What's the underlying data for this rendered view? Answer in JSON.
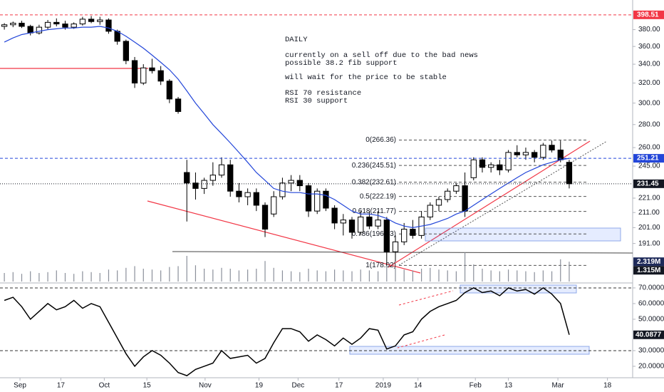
{
  "chart_data": [
    {
      "type": "candlestick",
      "note": [
        "DAILY",
        "currently on a sell off due to the bad news",
        "possible 38.2 fib support",
        "will wait for the price to be stable",
        "RSI 70 resistance",
        "RSI 30 support"
      ],
      "log_scale": true,
      "ylim": [
        169,
        418
      ],
      "xlim": [
        -0.5,
        72.3
      ],
      "yticks": [
        {
          "value": 380,
          "label": "380.00"
        },
        {
          "value": 360,
          "label": "360.00"
        },
        {
          "value": 340,
          "label": "340.00"
        },
        {
          "value": 320,
          "label": "320.00"
        },
        {
          "value": 300,
          "label": "300.00"
        },
        {
          "value": 280,
          "label": "280.00"
        },
        {
          "value": 260,
          "label": "260.00"
        },
        {
          "value": 245,
          "label": "245.00"
        },
        {
          "value": 221,
          "label": "221.00"
        },
        {
          "value": 211,
          "label": "211.00"
        },
        {
          "value": 201,
          "label": "201.00"
        },
        {
          "value": 191,
          "label": "191.00"
        }
      ],
      "xticks": [
        {
          "value": 1.8,
          "label": "Sep"
        },
        {
          "value": 6.5,
          "label": "17"
        },
        {
          "value": 11.5,
          "label": "Oct"
        },
        {
          "value": 16.4,
          "label": "15"
        },
        {
          "value": 23.1,
          "label": "Nov"
        },
        {
          "value": 29.3,
          "label": "19"
        },
        {
          "value": 33.8,
          "label": "Dec"
        },
        {
          "value": 38.5,
          "label": "17"
        },
        {
          "value": 43.6,
          "label": "2019"
        },
        {
          "value": 47.6,
          "label": "14"
        },
        {
          "value": 54.2,
          "label": "Feb"
        },
        {
          "value": 58.0,
          "label": "13"
        },
        {
          "value": 63.7,
          "label": "Mar"
        },
        {
          "value": 69.4,
          "label": "18"
        }
      ],
      "open": [
        384,
        386,
        388,
        384,
        376,
        383,
        389,
        387,
        383,
        387,
        393,
        390,
        392,
        378,
        366,
        344,
        320,
        336,
        333,
        322,
        304,
        240,
        232,
        228,
        234,
        238,
        246,
        226,
        222,
        225,
        216,
        210,
        222,
        232,
        234,
        230,
        212,
        226,
        214,
        204,
        206,
        198,
        208,
        202,
        206,
        186,
        192,
        200,
        196,
        208,
        216,
        220,
        226,
        230,
        236,
        250,
        244,
        246,
        242,
        256,
        254,
        256,
        252,
        262,
        258,
        248
      ],
      "high": [
        388,
        390,
        391,
        386,
        386,
        392,
        394,
        391,
        389,
        396,
        397,
        396,
        394,
        380,
        368,
        348,
        340,
        346,
        338,
        324,
        306,
        250,
        240,
        236,
        248,
        252,
        250,
        232,
        228,
        228,
        218,
        226,
        236,
        238,
        238,
        232,
        228,
        228,
        216,
        210,
        208,
        212,
        212,
        212,
        208,
        196,
        204,
        206,
        212,
        218,
        222,
        228,
        232,
        240,
        252,
        252,
        248,
        250,
        258,
        262,
        260,
        258,
        264,
        266,
        266,
        250
      ],
      "low": [
        380,
        383,
        382,
        373,
        374,
        380,
        384,
        380,
        381,
        385,
        388,
        386,
        375,
        362,
        340,
        315,
        318,
        330,
        318,
        300,
        290,
        205,
        220,
        224,
        230,
        236,
        222,
        218,
        216,
        212,
        195,
        208,
        220,
        226,
        226,
        208,
        210,
        212,
        200,
        196,
        194,
        196,
        200,
        200,
        178,
        180,
        190,
        194,
        194,
        206,
        212,
        218,
        224,
        208,
        234,
        240,
        240,
        238,
        240,
        252,
        250,
        248,
        250,
        256,
        248,
        228
      ],
      "close": [
        386,
        388,
        384,
        376,
        383,
        389,
        387,
        383,
        387,
        393,
        390,
        392,
        378,
        366,
        344,
        320,
        336,
        333,
        322,
        304,
        292,
        232,
        228,
        234,
        238,
        246,
        226,
        222,
        225,
        216,
        200,
        222,
        232,
        234,
        230,
        212,
        226,
        214,
        204,
        206,
        198,
        208,
        202,
        206,
        186,
        192,
        200,
        196,
        208,
        216,
        220,
        226,
        230,
        212,
        250,
        244,
        246,
        242,
        256,
        254,
        256,
        252,
        262,
        258,
        250,
        231.45
      ],
      "ma": {
        "color": "#2346d9",
        "values": [
          365,
          370,
          374,
          376,
          378,
          380,
          381,
          382,
          382,
          383,
          383,
          384,
          382,
          378,
          372,
          365,
          358,
          350,
          342,
          334,
          324,
          312,
          300,
          290,
          280,
          272,
          264,
          256,
          248,
          240,
          234,
          228,
          226,
          225,
          225,
          224,
          224,
          223,
          220,
          216,
          212,
          210,
          210,
          209,
          207,
          204,
          202,
          201,
          202,
          203,
          205,
          207,
          210,
          212,
          216,
          220,
          224,
          228,
          232,
          236,
          240,
          243,
          246,
          248,
          250,
          251.21
        ]
      },
      "fib": [
        {
          "value": 266.36,
          "label": "0(266.36)"
        },
        {
          "value": 245.51,
          "label": "0.236(245.51)"
        },
        {
          "value": 232.61,
          "label": "0.382(232.61)"
        },
        {
          "value": 222.19,
          "label": "0.5(222.19)"
        },
        {
          "value": 211.77,
          "label": "0.618(211.77)"
        },
        {
          "value": 196.93,
          "label": "0.786(196.93)"
        },
        {
          "value": 178.02,
          "label": "1(178.02)"
        }
      ],
      "price_labels": [
        {
          "value": 398.51,
          "label": "398.51",
          "color": "#f23645"
        },
        {
          "value": 251.21,
          "label": "251.21",
          "color": "#2346d9"
        },
        {
          "value": 231.45,
          "label": "231.45",
          "color": "#131722"
        }
      ],
      "volume": {
        "color": "#8a8f9a",
        "ylim": [
          0,
          3.0
        ],
        "values": [
          1.0,
          1.1,
          0.9,
          1.2,
          1.0,
          1.1,
          1.3,
          1.0,
          0.9,
          1.2,
          1.1,
          1.0,
          1.4,
          1.3,
          1.6,
          1.8,
          1.5,
          1.4,
          1.3,
          1.7,
          1.8,
          3.0,
          1.9,
          1.5,
          1.4,
          1.6,
          1.5,
          1.3,
          1.4,
          1.5,
          2.4,
          1.6,
          1.3,
          1.2,
          1.1,
          1.5,
          1.3,
          1.2,
          1.4,
          1.3,
          1.2,
          1.4,
          1.3,
          1.2,
          2.2,
          1.6,
          1.4,
          1.3,
          1.5,
          1.6,
          1.4,
          1.3,
          1.2,
          3.4,
          2.0,
          1.5,
          1.3,
          1.2,
          1.4,
          1.3,
          1.2,
          1.1,
          1.3,
          1.2,
          2.6,
          2.319
        ],
        "labels": [
          {
            "value": 2.319,
            "label": "2.319M",
            "color": "#1e2a5a"
          },
          {
            "value": 1.315,
            "label": "1.315M",
            "color": "#131722"
          }
        ]
      }
    },
    {
      "type": "line",
      "ylim": [
        12.7,
        72.7
      ],
      "yticks": [
        {
          "value": 70,
          "label": "70.0000"
        },
        {
          "value": 60,
          "label": "60.0000"
        },
        {
          "value": 50,
          "label": "50.0000"
        },
        {
          "value": 30,
          "label": "30.0000"
        },
        {
          "value": 20,
          "label": "20.0000"
        }
      ],
      "levels": [
        70,
        30
      ],
      "color": "#000000",
      "values": [
        62,
        64,
        58,
        50,
        55,
        60,
        56,
        58,
        62,
        57,
        60,
        58,
        48,
        38,
        28,
        20,
        26,
        30,
        27,
        22,
        16,
        14,
        18,
        20,
        22,
        30,
        25,
        26,
        27,
        22,
        25,
        35,
        44,
        44,
        42,
        36,
        40,
        37,
        33,
        38,
        34,
        38,
        44,
        43,
        31,
        33,
        40,
        42,
        50,
        55,
        58,
        60,
        62,
        67,
        70,
        67,
        68,
        65,
        70,
        68,
        69,
        66,
        70,
        66,
        60,
        40.0877
      ],
      "last_label": {
        "value": 40.0877,
        "label": "40.0877"
      }
    }
  ]
}
